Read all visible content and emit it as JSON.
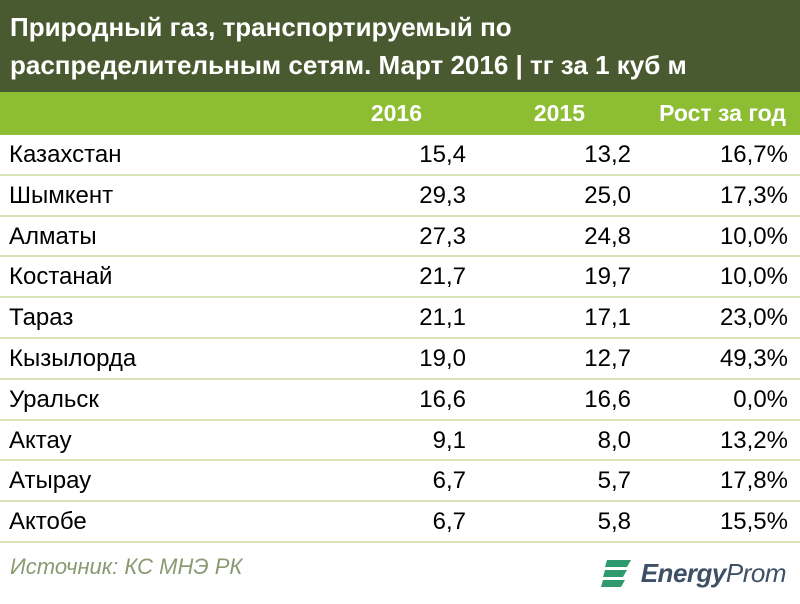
{
  "title": {
    "line1": "Природный газ, транспортируемый по",
    "line2": "распределительным сетям. Март 2016 | тг за 1 куб м"
  },
  "table": {
    "headers": [
      "",
      "2016",
      "2015",
      "Рост за год"
    ],
    "rows": [
      {
        "city": "Казахстан",
        "v2016": "15,4",
        "v2015": "13,2",
        "growth": "16,7%"
      },
      {
        "city": "Шымкент",
        "v2016": "29,3",
        "v2015": "25,0",
        "growth": "17,3%"
      },
      {
        "city": "Алматы",
        "v2016": "27,3",
        "v2015": "24,8",
        "growth": "10,0%"
      },
      {
        "city": "Костанай",
        "v2016": "21,7",
        "v2015": "19,7",
        "growth": "10,0%"
      },
      {
        "city": "Тараз",
        "v2016": "21,1",
        "v2015": "17,1",
        "growth": "23,0%"
      },
      {
        "city": "Кызылорда",
        "v2016": "19,0",
        "v2015": "12,7",
        "growth": "49,3%"
      },
      {
        "city": "Уральск",
        "v2016": "16,6",
        "v2015": "16,6",
        "growth": "0,0%"
      },
      {
        "city": "Актау",
        "v2016": "9,1",
        "v2015": "8,0",
        "growth": "13,2%"
      },
      {
        "city": "Атырау",
        "v2016": "6,7",
        "v2015": "5,7",
        "growth": "17,8%"
      },
      {
        "city": "Актобе",
        "v2016": "6,7",
        "v2015": "5,8",
        "growth": "15,5%"
      }
    ]
  },
  "footer": {
    "source": "Источник: КС МНЭ РК",
    "logo_bold": "Energy",
    "logo_light": "Prom",
    "logo_icon": "energyprom-logo-icon"
  },
  "colors": {
    "title_bg": "#4a5a30",
    "header_bg": "#8dbd32",
    "row_border": "#d6e4b8",
    "source_text": "#8a9a72",
    "logo_text": "#3e5066",
    "logo_accent": "#2f9a6e"
  }
}
